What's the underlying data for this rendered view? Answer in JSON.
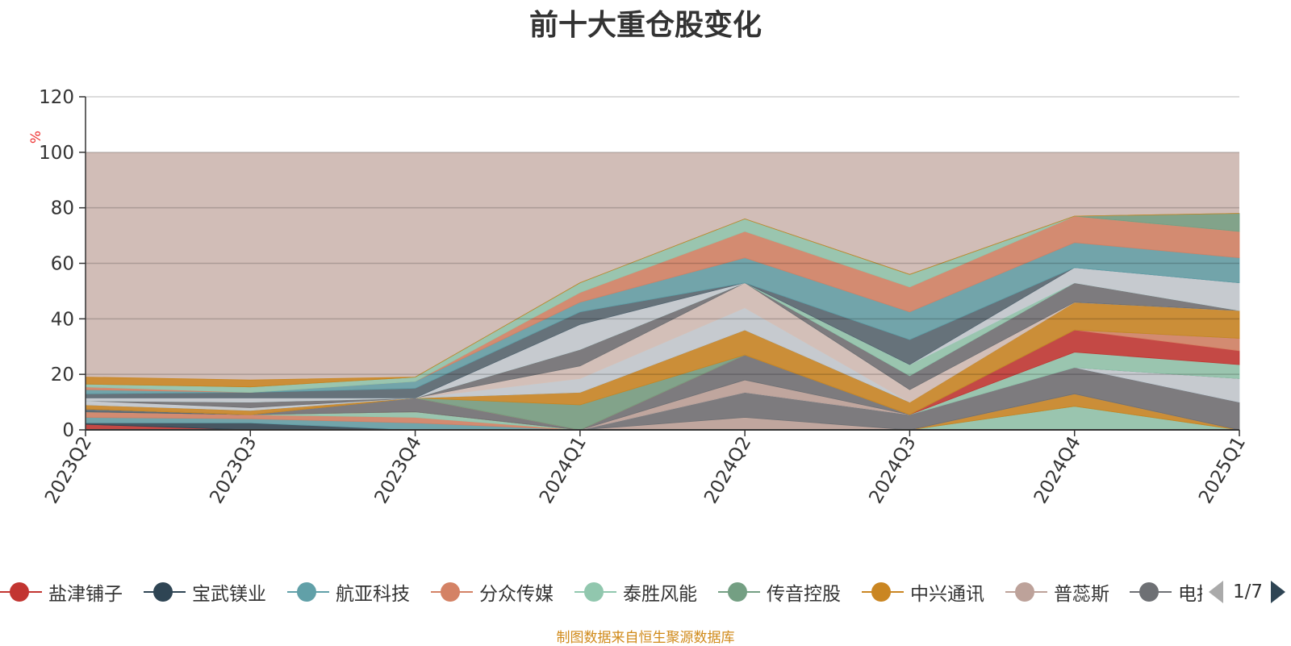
{
  "chart_data": {
    "type": "area",
    "title": "前十大重仓股变化",
    "ylabel": "%",
    "ylim": [
      0,
      120
    ],
    "yticks": [
      0,
      20,
      40,
      60,
      80,
      100,
      120
    ],
    "grid": true,
    "categories": [
      "2023Q2",
      "2023Q3",
      "2023Q4",
      "2024Q1",
      "2024Q2",
      "2024Q3",
      "2024Q4",
      "2025Q1"
    ],
    "stacked_layers": [
      {
        "color": "#c23531",
        "values": [
          2.0,
          0,
          0,
          0,
          0,
          0,
          0,
          0
        ]
      },
      {
        "color": "#2f4554",
        "values": [
          0.5,
          2.5,
          0,
          0,
          0,
          0,
          0,
          0
        ]
      },
      {
        "color": "#61a0a8",
        "values": [
          2.0,
          1.5,
          2.5,
          0,
          0,
          0,
          0,
          0
        ]
      },
      {
        "color": "#d48265",
        "values": [
          2.0,
          1.5,
          2.0,
          0,
          0,
          0,
          0,
          0
        ]
      },
      {
        "color": "#91c7ae",
        "values": [
          0,
          0,
          2.0,
          0,
          0,
          0,
          8.5,
          0
        ]
      },
      {
        "color": "#749f83",
        "values": [
          0,
          0,
          0,
          0,
          0,
          0,
          0,
          0
        ]
      },
      {
        "color": "#ca8622",
        "values": [
          0,
          0,
          0,
          0,
          0,
          0,
          4.5,
          0
        ]
      },
      {
        "color": "#bda29a",
        "values": [
          0,
          0,
          0,
          0,
          4.5,
          0,
          0,
          0
        ]
      },
      {
        "color": "#6e7074",
        "values": [
          0,
          0,
          5.0,
          0,
          9.0,
          5.5,
          9.5,
          10.0
        ]
      },
      {
        "color": "#546570",
        "values": [
          1.0,
          0,
          0,
          0,
          0,
          0,
          0,
          0
        ]
      },
      {
        "color": "#c4ccd3",
        "values": [
          0,
          0,
          0,
          0,
          0,
          0,
          0,
          8.5
        ]
      },
      {
        "color": "#bda29a",
        "values": [
          0,
          0,
          0,
          0,
          4.5,
          0,
          0,
          0
        ]
      },
      {
        "color": "#6e7074",
        "values": [
          0,
          0,
          0,
          0,
          9.0,
          0,
          0,
          0
        ]
      },
      {
        "color": "#91c7ae",
        "values": [
          0,
          0,
          0,
          0,
          0,
          0,
          5.5,
          5.0
        ]
      },
      {
        "color": "#c23531",
        "values": [
          0,
          0,
          0,
          0,
          0,
          0,
          8.0,
          5.0
        ]
      },
      {
        "color": "#d48265",
        "values": [
          0,
          0,
          0,
          0,
          0,
          0,
          0,
          4.5
        ]
      },
      {
        "color": "#749f83",
        "values": [
          0,
          0,
          0,
          9.0,
          0,
          0,
          0,
          0
        ]
      },
      {
        "color": "#ca8622",
        "values": [
          1.5,
          1.5,
          0,
          4.5,
          9.0,
          4.5,
          10.0,
          10.0
        ]
      },
      {
        "color": "#546570",
        "values": [
          0,
          0,
          0,
          0,
          0,
          0,
          0,
          0
        ]
      },
      {
        "color": "#c4ccd3",
        "values": [
          1.5,
          1.0,
          0,
          5.0,
          8.0,
          0,
          0,
          0
        ]
      },
      {
        "color": "#d4c0b8",
        "values": [
          0,
          0,
          0,
          4.5,
          9.0,
          4.5,
          0,
          0
        ]
      },
      {
        "color": "#6e7074",
        "values": [
          0,
          2.0,
          0,
          6.0,
          0,
          5.0,
          7.0,
          0
        ]
      },
      {
        "color": "#91c7ae",
        "values": [
          0,
          0,
          0,
          0,
          0,
          4.0,
          0,
          0
        ]
      },
      {
        "color": "#c4ccd3",
        "values": [
          1.0,
          1.5,
          0,
          9.0,
          0,
          0,
          5.5,
          10.0
        ]
      },
      {
        "color": "#546570",
        "values": [
          1.5,
          2.0,
          3.5,
          4.5,
          0,
          9.0,
          0,
          0
        ]
      },
      {
        "color": "#61a0a8",
        "values": [
          1.5,
          0,
          2.5,
          3.5,
          9.0,
          10.0,
          9.0,
          9.0
        ]
      },
      {
        "color": "#d48265",
        "values": [
          1.0,
          0,
          0,
          3.5,
          9.5,
          9.0,
          9.5,
          9.5
        ]
      },
      {
        "color": "#91c7ae",
        "values": [
          1.0,
          2.0,
          1.5,
          3.5,
          4.5,
          4.5,
          0,
          0
        ]
      },
      {
        "color": "#749f83",
        "values": [
          0,
          0,
          0,
          0,
          0,
          0,
          0,
          6.5
        ]
      },
      {
        "color": "#ca8622",
        "values": [
          2.5,
          2.5,
          0,
          0,
          0,
          0,
          0,
          0
        ]
      }
    ],
    "background_band": {
      "color": "#d1bdb7",
      "value": 100
    },
    "legend": [
      {
        "name": "盐津铺子",
        "color": "#c23531"
      },
      {
        "name": "宝武镁业",
        "color": "#2f4554"
      },
      {
        "name": "航亚科技",
        "color": "#61a0a8"
      },
      {
        "name": "分众传媒",
        "color": "#d48265"
      },
      {
        "name": "泰胜风能",
        "color": "#91c7ae"
      },
      {
        "name": "传音控股",
        "color": "#749f83"
      },
      {
        "name": "中兴通讯",
        "color": "#ca8622"
      },
      {
        "name": "普蕊斯",
        "color": "#bda29a"
      },
      {
        "name": "电拓",
        "color": "#6e7074"
      }
    ],
    "legend_page": "1/7"
  },
  "footnote": "制图数据来自恒生聚源数据库"
}
